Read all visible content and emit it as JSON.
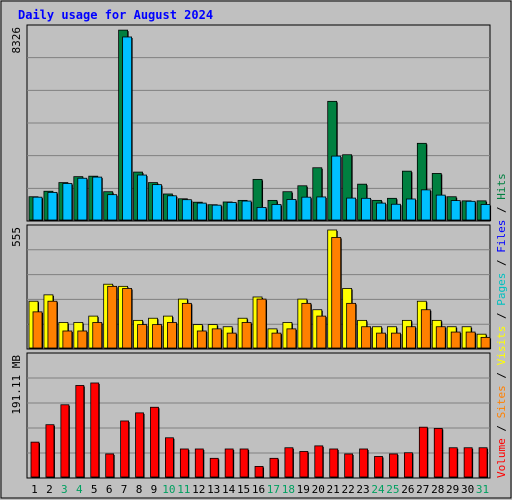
{
  "chart_data": {
    "type": "bar",
    "title": "Daily usage for August 2024",
    "days": [
      1,
      2,
      3,
      4,
      5,
      6,
      7,
      8,
      9,
      10,
      11,
      12,
      13,
      14,
      15,
      16,
      17,
      18,
      19,
      20,
      21,
      22,
      23,
      24,
      25,
      26,
      27,
      28,
      29,
      30,
      31
    ],
    "weekend_days": [
      3,
      4,
      10,
      11,
      17,
      18,
      24,
      25,
      31
    ],
    "panels": [
      {
        "id": "hits",
        "max_label": "8326",
        "ymax": 8326,
        "series": [
          {
            "name": "Hits",
            "color": "#008040",
            "values": [
              1020,
              1260,
              1640,
              1900,
              1920,
              1240,
              8320,
              2100,
              1640,
              1140,
              930,
              780,
              670,
              790,
              860,
              1780,
              860,
              1240,
              1500,
              2290,
              5200,
              2860,
              1570,
              860,
              950,
              2140,
              3360,
              2040,
              1020,
              840,
              840
            ]
          },
          {
            "name": "Files",
            "color": "#00c0ff",
            "values": [
              1000,
              1210,
              1600,
              1830,
              1880,
              1110,
              8020,
              1970,
              1550,
              1060,
              890,
              740,
              650,
              770,
              830,
              550,
              680,
              900,
              1000,
              1010,
              2800,
              960,
              950,
              740,
              690,
              920,
              1320,
              1090,
              850,
              820,
              680
            ]
          }
        ]
      },
      {
        "id": "pages",
        "max_label": "555",
        "ymax": 555,
        "series": [
          {
            "name": "Pages",
            "color": "#ffff00",
            "values": [
              220,
              250,
              120,
              120,
              150,
              300,
              290,
              130,
              140,
              150,
              230,
              110,
              110,
              100,
              140,
              240,
              90,
              120,
              230,
              180,
              555,
              280,
              130,
              100,
              100,
              130,
              220,
              130,
              100,
              100,
              65
            ]
          },
          {
            "name": "Visits",
            "color": "#ff8000",
            "values": [
              170,
              220,
              80,
              80,
              120,
              290,
              280,
              110,
              110,
              120,
              210,
              80,
              90,
              70,
              120,
              230,
              70,
              90,
              210,
              150,
              520,
              210,
              100,
              70,
              70,
              100,
              180,
              100,
              75,
              75,
              50
            ]
          }
        ]
      },
      {
        "id": "volume",
        "max_label": "191.11 MB",
        "ymax": 191.11,
        "series": [
          {
            "name": "Volume",
            "color": "#ff0000",
            "values": [
              56,
              84,
              116,
              147,
              151,
              37,
              90,
              103,
              112,
              63,
              45,
              45,
              30,
              45,
              45,
              17,
              30,
              47,
              41,
              50,
              45,
              37,
              45,
              33,
              37,
              39,
              80,
              78,
              47,
              47,
              47
            ]
          }
        ]
      }
    ],
    "legend_order_bottom_to_top": [
      {
        "text": "Volume",
        "color": "#ff0000"
      },
      {
        "text": "Sites",
        "color": "#ff8000"
      },
      {
        "text": "Visits",
        "color": "#ffff00"
      },
      {
        "text": "Pages",
        "color": "#00c0c0"
      },
      {
        "text": "Files",
        "color": "#0000ff"
      },
      {
        "text": "Hits",
        "color": "#008040"
      }
    ],
    "legend_separator": " / ",
    "colors": {
      "background": "#c0c0c0",
      "plot_background": "#c0c0c0",
      "grid": "#808080",
      "title": "#0000ff",
      "weekday_label": "#000000",
      "weekend_label": "#00a060"
    }
  }
}
